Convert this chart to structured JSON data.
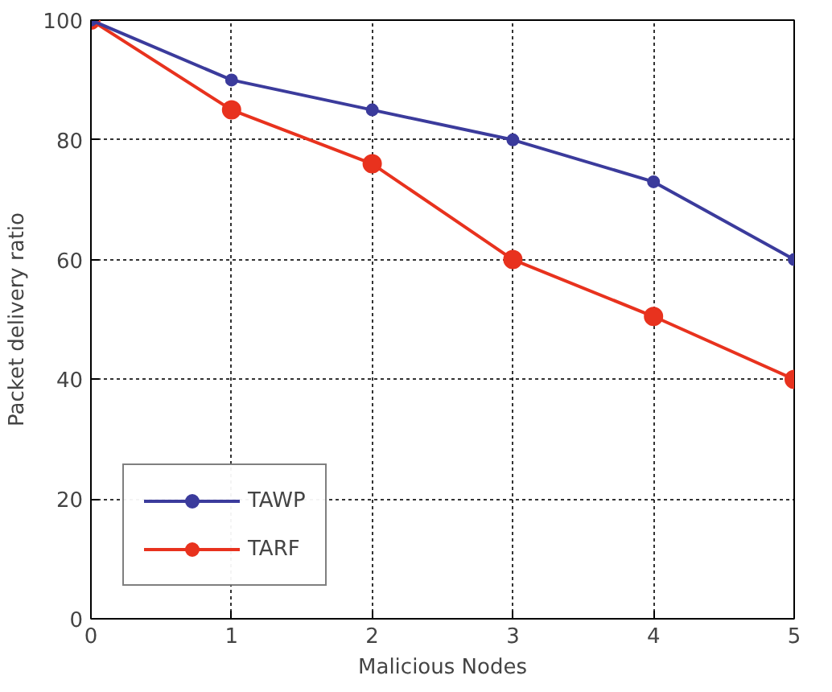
{
  "chart_data": {
    "type": "line",
    "xlabel": "Malicious Nodes",
    "ylabel": "Packet delivery ratio",
    "x": [
      0,
      1,
      2,
      3,
      4,
      5
    ],
    "series": [
      {
        "name": "TAWP",
        "color": "#3b3b9c",
        "values": [
          100,
          90,
          85,
          80,
          73,
          60
        ]
      },
      {
        "name": "TARF",
        "color": "#e8321e",
        "values": [
          100,
          85,
          76,
          60,
          50.5,
          40
        ]
      }
    ],
    "xlim": [
      0,
      5
    ],
    "ylim": [
      0,
      100
    ],
    "xticks": [
      0,
      1,
      2,
      3,
      4,
      5
    ],
    "yticks": [
      0,
      20,
      40,
      60,
      80,
      100
    ],
    "grid": true,
    "legend": "bottom left",
    "marker": "circle",
    "line_style": "solid"
  }
}
